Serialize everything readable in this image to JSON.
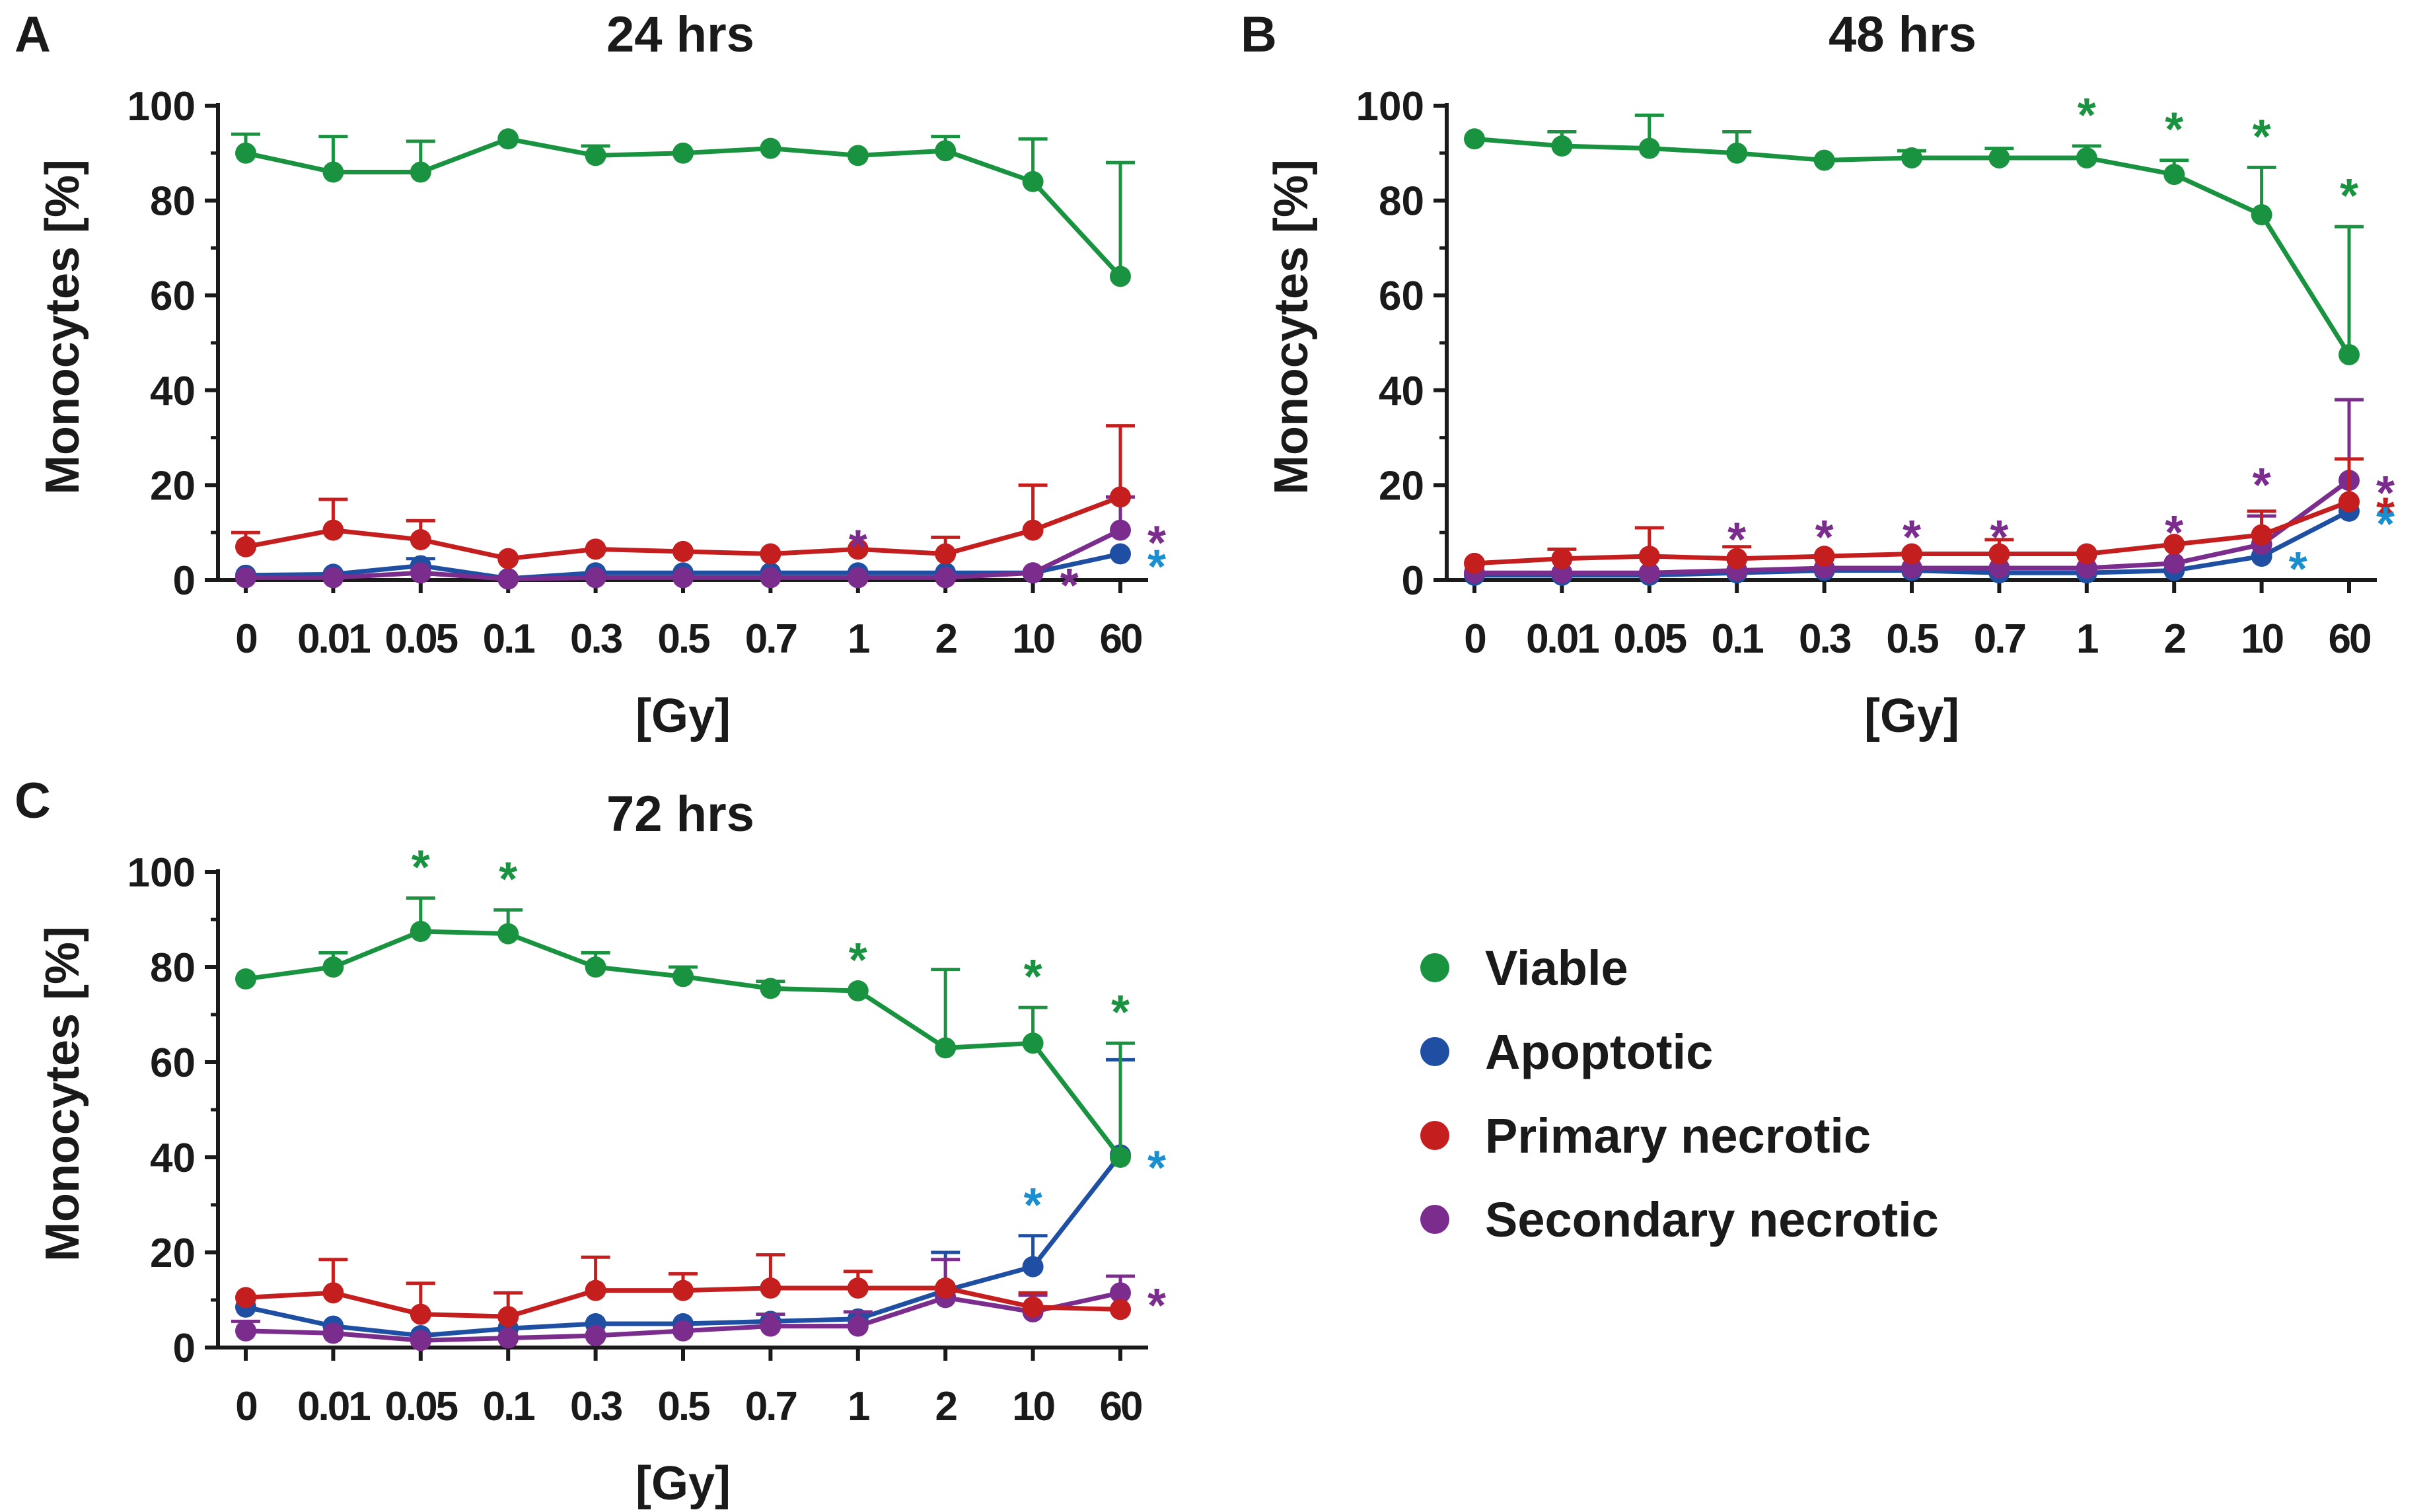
{
  "figure": {
    "panels": [
      "A",
      "B",
      "C"
    ]
  },
  "colors": {
    "Viable": "#1a9340",
    "Apoptotic": "#1f4fa3",
    "Primary necrotic": "#c41e1e",
    "Secondary necrotic": "#7b2d8e",
    "sig_apoptotic": "#1a8fd0",
    "axis": "#1a1a1a"
  },
  "legend": [
    "Viable",
    "Apoptotic",
    "Primary necrotic",
    "Secondary necrotic"
  ],
  "chart_data": [
    {
      "panel": "A",
      "type": "line",
      "title": "24 hrs",
      "xlabel": "[Gy]",
      "ylabel": "Monocytes [%]",
      "ylim": [
        0,
        100
      ],
      "yticks": [
        0,
        20,
        40,
        60,
        80,
        100
      ],
      "categories": [
        "0",
        "0.01",
        "0.05",
        "0.1",
        "0.3",
        "0.5",
        "0.7",
        "1",
        "2",
        "10",
        "60"
      ],
      "series": [
        {
          "name": "Viable",
          "values": [
            90,
            86,
            86,
            93,
            89.5,
            90,
            91,
            89.5,
            90.5,
            84,
            64
          ],
          "err": [
            4,
            7.5,
            6.5,
            0,
            2,
            0,
            0,
            0,
            3,
            9,
            24
          ]
        },
        {
          "name": "Apoptotic",
          "values": [
            1,
            1.2,
            3,
            0.3,
            1.5,
            1.5,
            1.5,
            1.5,
            1.5,
            1.5,
            5.5
          ],
          "err": [
            0,
            0,
            1.5,
            0,
            0,
            0,
            0,
            0,
            0,
            0,
            0
          ]
        },
        {
          "name": "Primary necrotic",
          "values": [
            7,
            10.5,
            8.5,
            4.5,
            6.5,
            6,
            5.5,
            6.5,
            5.5,
            10.5,
            17.5
          ],
          "err": [
            3,
            6.5,
            4,
            0,
            0,
            0,
            0,
            0,
            3.5,
            9.5,
            15
          ]
        },
        {
          "name": "Secondary necrotic",
          "values": [
            0.5,
            0.5,
            1.5,
            0.2,
            0.5,
            0.5,
            0.5,
            0.5,
            0.5,
            1.5,
            10.5
          ],
          "err": [
            0,
            0,
            0,
            0,
            0,
            0,
            0,
            0,
            0,
            0,
            7
          ]
        }
      ],
      "significance": [
        {
          "series": "Secondary necrotic",
          "index": 7,
          "side": "above"
        },
        {
          "series": "Secondary necrotic",
          "index": 9,
          "side": "right"
        },
        {
          "series": "Secondary necrotic",
          "index": 10,
          "side": "right"
        },
        {
          "series": "Apoptotic",
          "index": 10,
          "side": "right"
        }
      ]
    },
    {
      "panel": "B",
      "type": "line",
      "title": "48 hrs",
      "xlabel": "[Gy]",
      "ylabel": "Monocytes [%]",
      "ylim": [
        0,
        100
      ],
      "yticks": [
        0,
        20,
        40,
        60,
        80,
        100
      ],
      "categories": [
        "0",
        "0.01",
        "0.05",
        "0.1",
        "0.3",
        "0.5",
        "0.7",
        "1",
        "2",
        "10",
        "60"
      ],
      "series": [
        {
          "name": "Viable",
          "values": [
            93,
            91.5,
            91,
            90,
            88.5,
            89,
            89,
            89,
            85.5,
            77,
            47.5
          ],
          "err": [
            0,
            3,
            7,
            4.5,
            0,
            1.5,
            2,
            2.5,
            3,
            10,
            27
          ]
        },
        {
          "name": "Apoptotic",
          "values": [
            1,
            1,
            1,
            1.5,
            2,
            2,
            1.5,
            1.5,
            2,
            5,
            14.5
          ],
          "err": [
            0,
            0,
            0,
            0,
            0,
            0,
            0,
            0,
            0,
            0,
            0
          ]
        },
        {
          "name": "Primary necrotic",
          "values": [
            3.5,
            4.5,
            5,
            4.5,
            5,
            5.5,
            5.5,
            5.5,
            7.5,
            9.5,
            16.5
          ],
          "err": [
            0,
            2,
            6,
            2.5,
            0,
            0,
            3,
            0,
            0,
            5,
            9
          ]
        },
        {
          "name": "Secondary necrotic",
          "values": [
            1.5,
            1.5,
            1.5,
            2,
            2.5,
            2.5,
            2.5,
            2.5,
            3.5,
            7.5,
            21
          ],
          "err": [
            0,
            0,
            0,
            0,
            0,
            0,
            0,
            0,
            0,
            6,
            17
          ]
        }
      ],
      "significance": [
        {
          "series": "Viable",
          "index": 7,
          "side": "above"
        },
        {
          "series": "Viable",
          "index": 8,
          "side": "above"
        },
        {
          "series": "Viable",
          "index": 9,
          "side": "above"
        },
        {
          "series": "Viable",
          "index": 10,
          "side": "above"
        },
        {
          "series": "Secondary necrotic",
          "index": 3,
          "side": "above"
        },
        {
          "series": "Secondary necrotic",
          "index": 4,
          "side": "above"
        },
        {
          "series": "Secondary necrotic",
          "index": 5,
          "side": "above"
        },
        {
          "series": "Secondary necrotic",
          "index": 6,
          "side": "above"
        },
        {
          "series": "Secondary necrotic",
          "index": 8,
          "side": "above"
        },
        {
          "series": "Secondary necrotic",
          "index": 9,
          "side": "above"
        },
        {
          "series": "Secondary necrotic",
          "index": 10,
          "side": "right"
        },
        {
          "series": "Primary necrotic",
          "index": 10,
          "side": "right"
        },
        {
          "series": "Apoptotic",
          "index": 9,
          "side": "right"
        },
        {
          "series": "Apoptotic",
          "index": 10,
          "side": "right"
        }
      ]
    },
    {
      "panel": "C",
      "type": "line",
      "title": "72 hrs",
      "xlabel": "[Gy]",
      "ylabel": "Monocytes [%]",
      "ylim": [
        0,
        100
      ],
      "yticks": [
        0,
        20,
        40,
        60,
        80,
        100
      ],
      "categories": [
        "0",
        "0.01",
        "0.05",
        "0.1",
        "0.3",
        "0.5",
        "0.7",
        "1",
        "2",
        "10",
        "60"
      ],
      "series": [
        {
          "name": "Viable",
          "values": [
            77.5,
            80,
            87.5,
            87,
            80,
            78,
            75.5,
            75,
            63,
            64,
            40
          ],
          "err": [
            0,
            3,
            7,
            5,
            3,
            2,
            1.5,
            0,
            16.5,
            7.5,
            24
          ]
        },
        {
          "name": "Apoptotic",
          "values": [
            8.5,
            4.5,
            2.5,
            4,
            5,
            5,
            5.5,
            6,
            12,
            17,
            40.5
          ],
          "err": [
            0,
            0,
            0,
            0,
            0,
            0,
            0,
            0,
            8,
            6.5,
            20
          ]
        },
        {
          "name": "Primary necrotic",
          "values": [
            10.5,
            11.5,
            7,
            6.5,
            12,
            12,
            12.5,
            12.5,
            12.5,
            8.5,
            8
          ],
          "err": [
            0,
            7,
            6.5,
            5,
            7,
            3.5,
            7,
            3.5,
            0,
            3,
            0
          ]
        },
        {
          "name": "Secondary necrotic",
          "values": [
            3.5,
            3,
            1.5,
            2,
            2.5,
            3.5,
            4.5,
            4.5,
            10.5,
            7.5,
            11.5
          ],
          "err": [
            2,
            0,
            0,
            0,
            0,
            0,
            2.5,
            3,
            8,
            3.5,
            3.5
          ]
        }
      ],
      "significance": [
        {
          "series": "Viable",
          "index": 2,
          "side": "above"
        },
        {
          "series": "Viable",
          "index": 3,
          "side": "above"
        },
        {
          "series": "Viable",
          "index": 7,
          "side": "above"
        },
        {
          "series": "Viable",
          "index": 9,
          "side": "above"
        },
        {
          "series": "Viable",
          "index": 10,
          "side": "above"
        },
        {
          "series": "Apoptotic",
          "index": 9,
          "side": "above"
        },
        {
          "series": "Apoptotic",
          "index": 10,
          "side": "right"
        },
        {
          "series": "Secondary necrotic",
          "index": 10,
          "side": "right"
        }
      ]
    }
  ]
}
